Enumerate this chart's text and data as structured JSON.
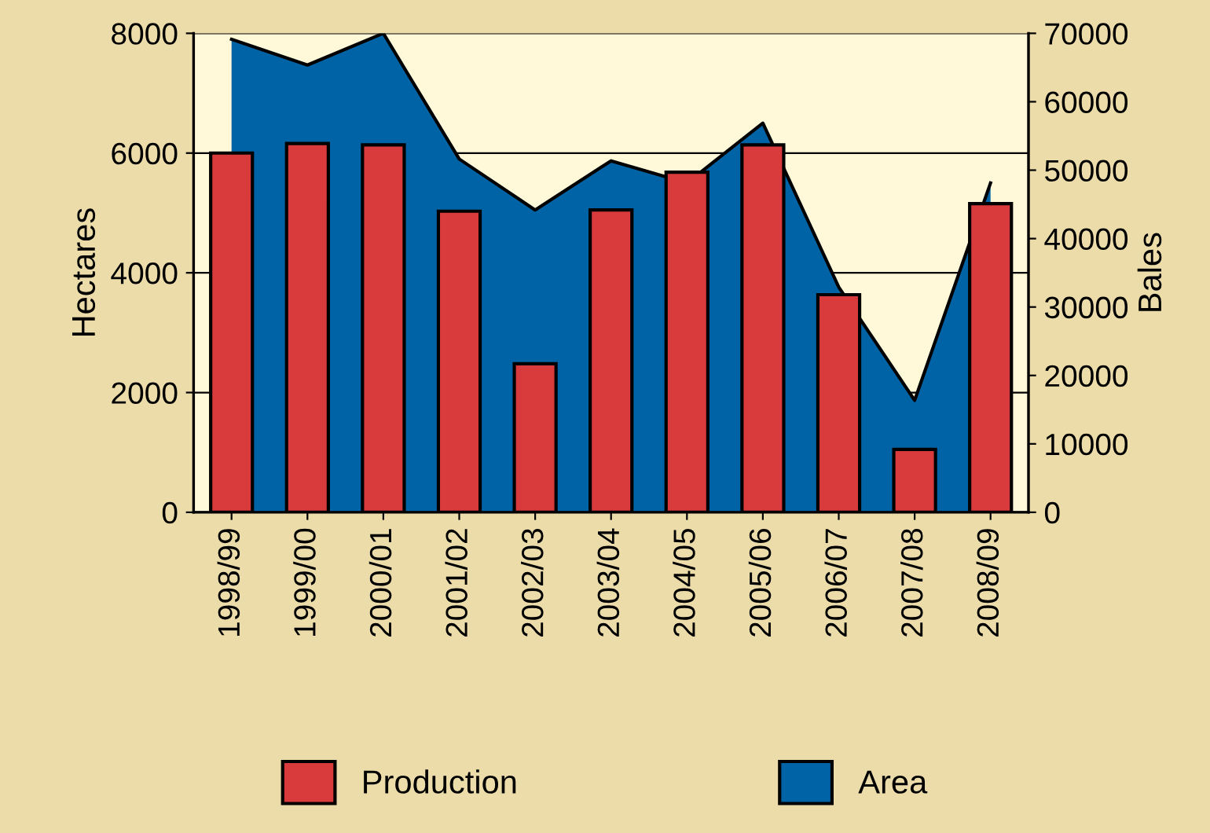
{
  "chart_data": {
    "type": "bar",
    "ylabel": "Hectares",
    "y2label": "Bales",
    "categories": [
      "1998/99",
      "1999/00",
      "2000/01",
      "2001/02",
      "2002/03",
      "2003/04",
      "2004/05",
      "2005/06",
      "2006/07",
      "2007/08",
      "2008/09"
    ],
    "series": [
      {
        "name": "Area",
        "type": "area",
        "color": "#0063a6",
        "values": [
          7900,
          7470,
          8000,
          5900,
          5050,
          5870,
          5500,
          6500,
          3760,
          1870,
          5500
        ]
      },
      {
        "name": "Production",
        "axis": "y2",
        "color": "#d93a3c",
        "values": [
          52500,
          53900,
          53700,
          44000,
          21700,
          44200,
          49700,
          53700,
          31800,
          9200,
          45100
        ]
      }
    ],
    "ylim": [
      0,
      8000
    ],
    "yticks": [
      0,
      2000,
      4000,
      6000,
      8000
    ],
    "y2lim": [
      0,
      70000
    ],
    "y2ticks": [
      0,
      10000,
      20000,
      30000,
      40000,
      50000,
      60000,
      70000
    ],
    "bands": [
      {
        "axis": "y",
        "from": 0,
        "to": 8000,
        "color": "#fff9d9"
      }
    ],
    "grid": "y",
    "legend": "bottom"
  }
}
